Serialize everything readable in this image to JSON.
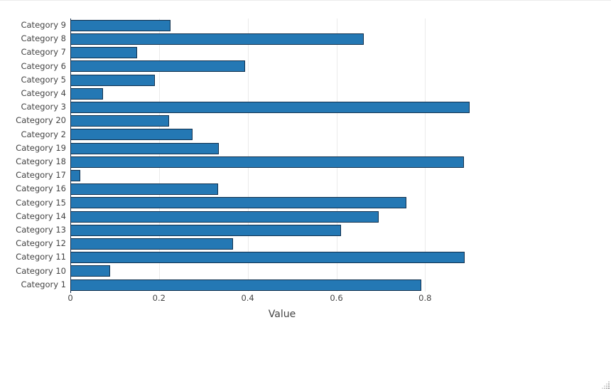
{
  "chart_data": {
    "type": "bar",
    "orientation": "horizontal",
    "title": "",
    "xlabel": "Value",
    "ylabel": "",
    "categories": [
      "Category 9",
      "Category 8",
      "Category 7",
      "Category 6",
      "Category 5",
      "Category 4",
      "Category 3",
      "Category 20",
      "Category 2",
      "Category 19",
      "Category 18",
      "Category 17",
      "Category 16",
      "Category 15",
      "Category 14",
      "Category 13",
      "Category 12",
      "Category 11",
      "Category 10",
      "Category 1"
    ],
    "values": [
      0.226,
      0.662,
      0.151,
      0.394,
      0.19,
      0.073,
      0.901,
      0.223,
      0.275,
      0.335,
      0.887,
      0.022,
      0.333,
      0.758,
      0.695,
      0.61,
      0.367,
      0.889,
      0.09,
      0.792
    ],
    "xlim": [
      0,
      0.955
    ],
    "xticks": [
      0,
      0.2,
      0.4,
      0.6,
      0.8
    ],
    "xtick_labels": [
      "0",
      "0.2",
      "0.4",
      "0.6",
      "0.8"
    ],
    "grid": true,
    "legend_position": "none",
    "colors": {
      "bar_fill": "#2478b4",
      "bar_border": "#10304e",
      "gridline": "#ebebeb",
      "zeroline": "#16304d",
      "text": "#444444",
      "background": "#ffffff"
    }
  },
  "icons": {
    "resize_grip": "resize-grip-icon"
  }
}
